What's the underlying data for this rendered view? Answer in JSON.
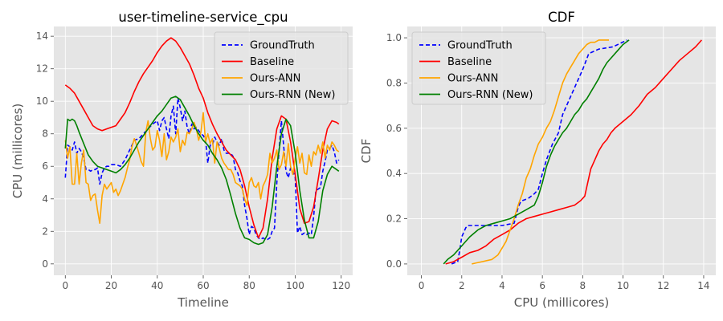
{
  "chart_data": [
    {
      "type": "line",
      "title": "user-timeline-service_cpu",
      "xlabel": "Timeline",
      "ylabel": "CPU (millicores)",
      "xlim": [
        -5,
        125
      ],
      "ylim": [
        -0.7,
        14.6
      ],
      "xticks": [
        0,
        20,
        40,
        60,
        80,
        100,
        120
      ],
      "yticks": [
        0,
        2,
        4,
        6,
        8,
        10,
        12,
        14
      ],
      "grid": true,
      "legend_position": "top-right",
      "series": [
        {
          "name": "GroundTruth",
          "color": "#0000ff",
          "dash": true,
          "x": [
            0,
            1,
            2,
            3,
            4,
            5,
            6,
            7,
            8,
            9,
            10,
            11,
            12,
            13,
            14,
            15,
            16,
            17,
            18,
            19,
            20,
            22,
            24,
            26,
            28,
            30,
            32,
            34,
            36,
            38,
            40,
            41,
            42,
            43,
            44,
            45,
            46,
            47,
            48,
            49,
            50,
            51,
            52,
            53,
            54,
            55,
            56,
            57,
            58,
            59,
            60,
            61,
            62,
            63,
            64,
            65,
            66,
            67,
            68,
            69,
            70,
            71,
            72,
            73,
            74,
            75,
            76,
            77,
            78,
            79,
            80,
            81,
            82,
            83,
            84,
            85,
            86,
            87,
            88,
            89,
            90,
            91,
            92,
            93,
            94,
            95,
            96,
            97,
            98,
            99,
            100,
            101,
            102,
            103,
            104,
            105,
            106,
            107,
            108,
            109,
            110,
            111,
            112,
            113,
            114,
            115,
            116,
            117,
            118,
            119
          ],
          "y": [
            5.3,
            7.3,
            7.2,
            7.0,
            7.5,
            6.8,
            7.1,
            6.9,
            6.5,
            5.8,
            5.8,
            5.7,
            5.8,
            5.8,
            5.9,
            4.9,
            5.6,
            5.9,
            6.0,
            6.0,
            6.1,
            6.1,
            6.0,
            6.4,
            7.0,
            7.6,
            7.7,
            8.0,
            8.3,
            8.6,
            8.8,
            8.2,
            8.8,
            9.0,
            8.3,
            7.7,
            9.1,
            9.7,
            8.0,
            10.2,
            9.6,
            8.8,
            9.4,
            8.4,
            8.0,
            8.6,
            8.3,
            8.4,
            8.2,
            8.0,
            7.9,
            7.6,
            6.2,
            7.3,
            7.3,
            7.8,
            7.5,
            7.3,
            7.7,
            7.0,
            6.8,
            6.8,
            6.8,
            6.6,
            5.8,
            5.6,
            5.1,
            4.8,
            3.6,
            2.8,
            1.8,
            2.3,
            2.2,
            1.8,
            1.6,
            1.5,
            1.6,
            1.5,
            1.5,
            1.6,
            2.0,
            2.2,
            5.0,
            7.0,
            8.8,
            7.2,
            5.7,
            5.3,
            5.9,
            5.7,
            5.3,
            1.9,
            2.3,
            1.8,
            1.9,
            1.8,
            1.9,
            1.8,
            2.9,
            4.5,
            4.6,
            4.7,
            5.7,
            6.3,
            7.0,
            7.1,
            7.3,
            6.9,
            6.2,
            6.4
          ]
        },
        {
          "name": "Baseline",
          "color": "#ff0000",
          "dash": false,
          "x": [
            0,
            2,
            4,
            6,
            8,
            10,
            12,
            14,
            16,
            18,
            20,
            22,
            24,
            26,
            28,
            30,
            32,
            34,
            36,
            38,
            40,
            42,
            44,
            46,
            48,
            50,
            52,
            54,
            56,
            58,
            60,
            62,
            64,
            66,
            68,
            70,
            72,
            74,
            76,
            78,
            80,
            82,
            84,
            86,
            88,
            90,
            92,
            94,
            96,
            98,
            100,
            102,
            104,
            106,
            108,
            110,
            112,
            114,
            116,
            118,
            119
          ],
          "y": [
            11.0,
            10.8,
            10.5,
            10.0,
            9.5,
            9.0,
            8.5,
            8.3,
            8.2,
            8.3,
            8.4,
            8.5,
            8.9,
            9.3,
            9.9,
            10.6,
            11.2,
            11.7,
            12.1,
            12.5,
            13.0,
            13.4,
            13.7,
            13.9,
            13.7,
            13.3,
            12.8,
            12.3,
            11.6,
            10.8,
            10.2,
            9.3,
            8.6,
            8.0,
            7.5,
            7.0,
            6.7,
            6.4,
            5.8,
            4.8,
            3.5,
            2.4,
            1.6,
            2.2,
            4.0,
            6.5,
            8.3,
            9.1,
            8.9,
            7.5,
            5.5,
            3.4,
            2.5,
            2.6,
            3.5,
            5.2,
            7.0,
            8.3,
            8.8,
            8.7,
            8.6
          ]
        },
        {
          "name": "Ours-ANN",
          "color": "#ffa500",
          "dash": false,
          "x": [
            0,
            1,
            2,
            3,
            4,
            5,
            6,
            7,
            8,
            9,
            10,
            11,
            12,
            13,
            14,
            15,
            16,
            17,
            18,
            19,
            20,
            21,
            22,
            23,
            24,
            25,
            26,
            27,
            28,
            29,
            30,
            31,
            32,
            33,
            34,
            35,
            36,
            37,
            38,
            39,
            40,
            41,
            42,
            43,
            44,
            45,
            46,
            47,
            48,
            49,
            50,
            51,
            52,
            53,
            54,
            55,
            56,
            57,
            58,
            59,
            60,
            61,
            62,
            63,
            64,
            65,
            66,
            67,
            68,
            69,
            70,
            71,
            72,
            73,
            74,
            75,
            76,
            77,
            78,
            79,
            80,
            81,
            82,
            83,
            84,
            85,
            86,
            87,
            88,
            89,
            90,
            91,
            92,
            93,
            94,
            95,
            96,
            97,
            98,
            99,
            100,
            101,
            102,
            103,
            104,
            105,
            106,
            107,
            108,
            109,
            110,
            111,
            112,
            113,
            114,
            115,
            116,
            117,
            118,
            119
          ],
          "y": [
            7.6,
            6.5,
            7.2,
            4.9,
            4.9,
            6.8,
            4.9,
            6.2,
            7.0,
            5.0,
            4.9,
            3.9,
            4.2,
            4.3,
            3.3,
            2.5,
            4.2,
            4.9,
            4.6,
            4.8,
            5.0,
            4.4,
            4.6,
            4.2,
            4.5,
            4.9,
            5.3,
            5.9,
            6.4,
            7.2,
            7.7,
            7.3,
            6.8,
            6.3,
            6.0,
            8.1,
            8.8,
            7.7,
            7.0,
            7.2,
            8.2,
            7.6,
            6.6,
            8.0,
            6.4,
            6.9,
            7.8,
            7.5,
            7.8,
            8.3,
            6.9,
            7.6,
            7.3,
            8.1,
            8.0,
            8.3,
            8.7,
            8.3,
            7.6,
            8.1,
            9.3,
            7.5,
            8.0,
            7.4,
            7.7,
            6.2,
            7.5,
            7.1,
            6.5,
            6.2,
            6.0,
            5.8,
            5.8,
            5.5,
            5.0,
            4.9,
            4.8,
            4.6,
            4.0,
            3.6,
            5.0,
            5.3,
            4.8,
            4.7,
            5.0,
            4.0,
            4.8,
            5.1,
            5.5,
            6.8,
            6.2,
            6.5,
            7.0,
            5.8,
            6.1,
            6.9,
            6.0,
            7.4,
            6.0,
            5.5,
            6.5,
            7.2,
            6.2,
            6.8,
            5.6,
            5.5,
            6.7,
            6.0,
            6.9,
            6.7,
            7.3,
            6.8,
            7.5,
            6.5,
            7.3,
            7.0,
            7.5,
            7.3,
            7.0,
            6.9
          ]
        },
        {
          "name": "Ours-RNN (New)",
          "color": "#008000",
          "dash": false,
          "x": [
            0,
            1,
            2,
            3,
            4,
            5,
            6,
            8,
            10,
            12,
            14,
            16,
            18,
            20,
            22,
            24,
            26,
            28,
            30,
            32,
            34,
            36,
            38,
            40,
            42,
            44,
            46,
            48,
            50,
            52,
            54,
            56,
            58,
            60,
            62,
            64,
            66,
            68,
            70,
            72,
            74,
            76,
            78,
            80,
            82,
            84,
            86,
            88,
            90,
            92,
            94,
            96,
            98,
            100,
            102,
            104,
            106,
            108,
            110,
            112,
            114,
            116,
            118,
            119
          ],
          "y": [
            7.1,
            8.9,
            8.8,
            8.9,
            8.8,
            8.5,
            8.1,
            7.4,
            6.7,
            6.3,
            6.0,
            5.9,
            5.8,
            5.7,
            5.6,
            5.8,
            6.1,
            6.5,
            7.0,
            7.5,
            7.9,
            8.3,
            8.7,
            9.1,
            9.4,
            9.8,
            10.2,
            10.3,
            10.1,
            9.6,
            9.1,
            8.5,
            8.0,
            7.6,
            7.3,
            6.8,
            6.4,
            5.9,
            5.2,
            4.2,
            3.1,
            2.2,
            1.6,
            1.5,
            1.3,
            1.2,
            1.3,
            1.8,
            3.5,
            6.0,
            8.0,
            8.9,
            8.5,
            6.8,
            4.5,
            2.7,
            1.6,
            1.6,
            2.6,
            4.5,
            5.5,
            6.0,
            5.8,
            5.7
          ]
        }
      ]
    },
    {
      "type": "line",
      "title": "CDF",
      "xlabel": "CPU (millicores)",
      "ylabel": "CDF",
      "xlim": [
        -0.7,
        14.6
      ],
      "ylim": [
        -0.05,
        1.05
      ],
      "xticks": [
        0,
        2,
        4,
        6,
        8,
        10,
        12,
        14
      ],
      "yticks": [
        0.0,
        0.2,
        0.4,
        0.6,
        0.8,
        1.0
      ],
      "grid": true,
      "legend_position": "top-left",
      "series": [
        {
          "name": "GroundTruth",
          "color": "#0000ff",
          "dash": true,
          "x": [
            1.5,
            1.8,
            1.9,
            2.0,
            2.2,
            2.3,
            3.0,
            4.0,
            4.6,
            4.8,
            4.9,
            5.0,
            5.3,
            5.6,
            5.8,
            6.0,
            6.2,
            6.5,
            6.8,
            7.0,
            7.3,
            7.6,
            7.8,
            8.0,
            8.3,
            8.8,
            9.5,
            10.2
          ],
          "y": [
            0.0,
            0.01,
            0.06,
            0.12,
            0.16,
            0.17,
            0.17,
            0.17,
            0.18,
            0.25,
            0.27,
            0.28,
            0.29,
            0.31,
            0.33,
            0.4,
            0.46,
            0.53,
            0.58,
            0.66,
            0.72,
            0.78,
            0.82,
            0.86,
            0.93,
            0.95,
            0.96,
            0.99
          ]
        },
        {
          "name": "Baseline",
          "color": "#ff0000",
          "dash": false,
          "x": [
            1.2,
            1.6,
            2.0,
            2.4,
            2.8,
            3.2,
            3.6,
            4.0,
            4.4,
            4.8,
            5.2,
            5.6,
            6.0,
            6.4,
            6.8,
            7.2,
            7.6,
            7.9,
            8.1,
            8.2,
            8.3,
            8.4,
            8.5,
            8.6,
            8.8,
            9.0,
            9.2,
            9.4,
            9.6,
            10.0,
            10.4,
            10.8,
            11.2,
            11.6,
            12.0,
            12.4,
            12.8,
            13.2,
            13.6,
            13.9
          ],
          "y": [
            0.0,
            0.01,
            0.03,
            0.05,
            0.06,
            0.08,
            0.11,
            0.13,
            0.15,
            0.18,
            0.2,
            0.21,
            0.22,
            0.23,
            0.24,
            0.25,
            0.26,
            0.28,
            0.3,
            0.34,
            0.38,
            0.42,
            0.44,
            0.46,
            0.5,
            0.53,
            0.55,
            0.58,
            0.6,
            0.63,
            0.66,
            0.7,
            0.75,
            0.78,
            0.82,
            0.86,
            0.9,
            0.93,
            0.96,
            0.99
          ]
        },
        {
          "name": "Ours-ANN",
          "color": "#ffa500",
          "dash": false,
          "x": [
            2.5,
            3.0,
            3.5,
            3.8,
            4.0,
            4.2,
            4.4,
            4.6,
            4.8,
            5.0,
            5.2,
            5.4,
            5.6,
            5.8,
            6.0,
            6.2,
            6.4,
            6.6,
            6.8,
            7.0,
            7.2,
            7.4,
            7.6,
            7.8,
            8.0,
            8.2,
            8.4,
            8.6,
            8.8,
            9.3
          ],
          "y": [
            0.0,
            0.01,
            0.02,
            0.04,
            0.07,
            0.1,
            0.15,
            0.2,
            0.26,
            0.31,
            0.38,
            0.42,
            0.48,
            0.53,
            0.56,
            0.6,
            0.63,
            0.68,
            0.74,
            0.8,
            0.84,
            0.87,
            0.9,
            0.93,
            0.95,
            0.97,
            0.98,
            0.98,
            0.99,
            0.99
          ]
        },
        {
          "name": "Ours-RNN (New)",
          "color": "#008000",
          "dash": false,
          "x": [
            1.1,
            1.3,
            1.6,
            2.0,
            2.4,
            2.8,
            3.2,
            3.6,
            4.0,
            4.4,
            4.8,
            5.2,
            5.6,
            5.8,
            6.0,
            6.2,
            6.4,
            6.6,
            6.8,
            7.0,
            7.2,
            7.4,
            7.6,
            7.8,
            8.0,
            8.2,
            8.4,
            8.6,
            8.8,
            9.0,
            9.2,
            9.4,
            9.6,
            9.8,
            10.0,
            10.3
          ],
          "y": [
            0.0,
            0.02,
            0.04,
            0.08,
            0.12,
            0.15,
            0.17,
            0.18,
            0.19,
            0.2,
            0.22,
            0.24,
            0.26,
            0.3,
            0.36,
            0.43,
            0.48,
            0.52,
            0.55,
            0.58,
            0.6,
            0.63,
            0.66,
            0.68,
            0.71,
            0.73,
            0.76,
            0.79,
            0.82,
            0.86,
            0.89,
            0.91,
            0.93,
            0.95,
            0.97,
            0.99
          ]
        }
      ]
    }
  ]
}
